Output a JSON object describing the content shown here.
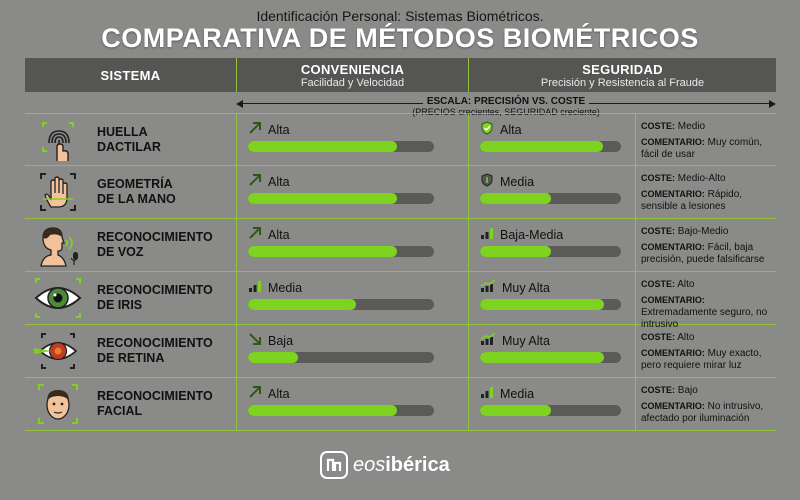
{
  "header": {
    "subtitle": "Identificación Personal: Sistemas Biométricos.",
    "title": "COMPARATIVA DE MÉTODOS BIOMÉTRICOS"
  },
  "columns": {
    "sistema": "SISTEMA",
    "conveniencia": "CONVENIENCIA",
    "conveniencia_sub": "Facilidad y Velocidad",
    "seguridad": "SEGURIDAD",
    "seguridad_sub": "Precisión y Resistencia al Fraude"
  },
  "scale": {
    "label": "ESCALA: PRECISIÓN VS. COSTE",
    "sub": "(PRECIOS crecientes, SEGURIDAD creciente)"
  },
  "colors": {
    "accent": "#7ed321",
    "background": "#8a8b88",
    "header_bg": "#555653"
  },
  "rows": [
    {
      "name1": "HUELLA",
      "name2": "DACTILAR",
      "icon": "fingerprint-icon",
      "conv_icon": "arrow-up-right-icon",
      "conv_level": "Alta",
      "conv_fill": 0.8,
      "seg_icon": "shield-check-icon",
      "seg_level": "Alta",
      "seg_fill": 0.87,
      "coste_key": "COSTE:",
      "coste": "Medio",
      "coment_key": "COMENTARIO:",
      "coment": "Muy común, fácil de usar"
    },
    {
      "name1": "GEOMETRÍA",
      "name2": "DE LA MANO",
      "icon": "hand-scan-icon",
      "conv_icon": "arrow-up-right-icon",
      "conv_level": "Alta",
      "conv_fill": 0.8,
      "seg_icon": "shield-icon",
      "seg_level": "Media",
      "seg_fill": 0.5,
      "coste_key": "COSTE:",
      "coste": "Medio-Alto",
      "coment_key": "COMENTARIO:",
      "coment": "Rápido, sensible a lesiones"
    },
    {
      "name1": "RECONOCIMIENTO",
      "name2": "DE VOZ",
      "icon": "voice-icon",
      "conv_icon": "arrow-up-right-icon",
      "conv_level": "Alta",
      "conv_fill": 0.8,
      "seg_icon": "signal-bars-icon",
      "seg_level": "Baja-Media",
      "seg_fill": 0.5,
      "coste_key": "COSTE:",
      "coste": "Bajo-Medio",
      "coment_key": "COMENTARIO:",
      "coment": "Fácil, baja precisión, puede falsificarse"
    },
    {
      "name1": "RECONOCIMIENTO",
      "name2": "DE IRIS",
      "icon": "eye-iris-icon",
      "conv_icon": "signal-bars-icon",
      "conv_level": "Media",
      "conv_fill": 0.58,
      "seg_icon": "trend-bars-icon",
      "seg_level": "Muy Alta",
      "seg_fill": 0.88,
      "coste_key": "COSTE:",
      "coste": "Alto",
      "coment_key": "COMENTARIO:",
      "coment": "Extremadamente seguro, no intrusivo"
    },
    {
      "name1": "RECONOCIMIENTO",
      "name2": "DE RETINA",
      "icon": "retina-scan-icon",
      "conv_icon": "arrow-down-right-icon",
      "conv_level": "Baja",
      "conv_fill": 0.27,
      "seg_icon": "trend-bars-icon",
      "seg_level": "Muy Alta",
      "seg_fill": 0.88,
      "coste_key": "COSTE:",
      "coste": "Alto",
      "coment_key": "COMENTARIO:",
      "coment": "Muy exacto, pero requiere mirar luz"
    },
    {
      "name1": "RECONOCIMIENTO",
      "name2": "FACIAL",
      "icon": "face-icon",
      "conv_icon": "arrow-up-right-icon",
      "conv_level": "Alta",
      "conv_fill": 0.8,
      "seg_icon": "signal-bars-icon",
      "seg_level": "Media",
      "seg_fill": 0.5,
      "coste_key": "COSTE:",
      "coste": "Bajo",
      "coment_key": "COMENTARIO:",
      "coment": "No intrusivo, afectado por iluminación"
    }
  ],
  "logo": {
    "eos": "eos",
    "iberica": "ibérica"
  }
}
